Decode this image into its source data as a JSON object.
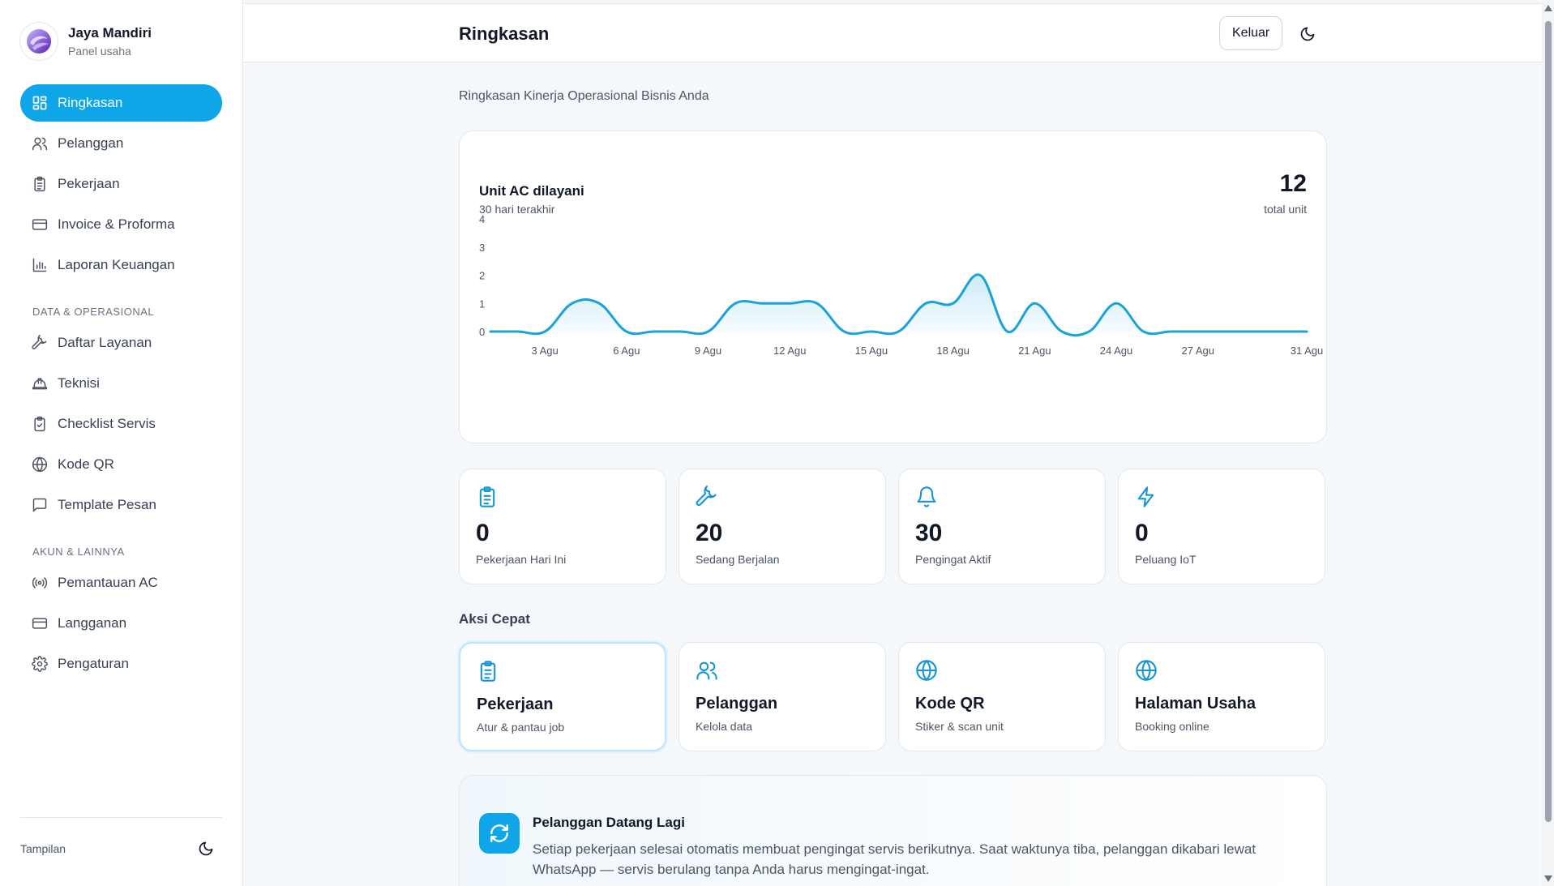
{
  "brand": {
    "name": "Jaya Mandiri",
    "subtitle": "Panel usaha"
  },
  "sidebar": {
    "main_items": [
      {
        "label": "Ringkasan",
        "icon": "grid-icon",
        "active": true
      },
      {
        "label": "Pelanggan",
        "icon": "users-icon"
      },
      {
        "label": "Pekerjaan",
        "icon": "clipboard-icon"
      },
      {
        "label": "Invoice & Proforma",
        "icon": "card-icon"
      },
      {
        "label": "Laporan Keuangan",
        "icon": "bar-chart-icon"
      }
    ],
    "section_data": "DATA & OPERASIONAL",
    "data_items": [
      {
        "label": "Daftar Layanan",
        "icon": "wrench-icon"
      },
      {
        "label": "Teknisi",
        "icon": "hardhat-icon"
      },
      {
        "label": "Checklist Servis",
        "icon": "clipboard-check-icon"
      },
      {
        "label": "Kode QR",
        "icon": "globe-icon"
      },
      {
        "label": "Template Pesan",
        "icon": "message-icon"
      }
    ],
    "section_account": "AKUN & LAINNYA",
    "account_items": [
      {
        "label": "Pemantauan AC",
        "icon": "radio-icon"
      },
      {
        "label": "Langganan",
        "icon": "card-icon"
      },
      {
        "label": "Pengaturan",
        "icon": "gear-icon"
      }
    ],
    "footer_label": "Tampilan"
  },
  "header": {
    "title": "Ringkasan",
    "logout_label": "Keluar"
  },
  "page_subtitle": "Ringkasan Kinerja Operasional Bisnis Anda",
  "chart_card": {
    "title": "Unit AC dilayani",
    "subtitle": "30 hari terakhir",
    "total": "12",
    "total_label": "total unit"
  },
  "chart_data": {
    "type": "area",
    "title": "Unit AC dilayani",
    "subtitle": "30 hari terakhir",
    "x": [
      1,
      2,
      3,
      4,
      5,
      6,
      7,
      8,
      9,
      10,
      11,
      12,
      13,
      14,
      15,
      16,
      17,
      18,
      19,
      20,
      21,
      22,
      23,
      24,
      25,
      26,
      27,
      28,
      29,
      30,
      31
    ],
    "x_tick_labels": [
      "3 Agu",
      "6 Agu",
      "9 Agu",
      "12 Agu",
      "15 Agu",
      "18 Agu",
      "21 Agu",
      "24 Agu",
      "27 Agu",
      "31 Agu"
    ],
    "x_tick_positions": [
      3,
      6,
      9,
      12,
      15,
      18,
      21,
      24,
      27,
      31
    ],
    "values": [
      0,
      0,
      0,
      1,
      1,
      0,
      0,
      0,
      0,
      1,
      1,
      1,
      1,
      0,
      0,
      0,
      1,
      1,
      2,
      0,
      1,
      0,
      0,
      1,
      0,
      0,
      0,
      0,
      0,
      0,
      0
    ],
    "ylim": [
      0,
      4
    ],
    "y_ticks": [
      0,
      1,
      2,
      3,
      4
    ],
    "grid": false,
    "color": "#1aa3da"
  },
  "stats": [
    {
      "value": "0",
      "label": "Pekerjaan Hari Ini",
      "icon": "clipboard-icon"
    },
    {
      "value": "20",
      "label": "Sedang Berjalan",
      "icon": "wrench-icon"
    },
    {
      "value": "30",
      "label": "Pengingat Aktif",
      "icon": "bell-icon"
    },
    {
      "value": "0",
      "label": "Peluang IoT",
      "icon": "lightning-icon"
    }
  ],
  "quick_actions_title": "Aksi Cepat",
  "quick_actions": [
    {
      "title": "Pekerjaan",
      "subtitle": "Atur & pantau job",
      "icon": "clipboard-icon"
    },
    {
      "title": "Pelanggan",
      "subtitle": "Kelola data",
      "icon": "users-icon"
    },
    {
      "title": "Kode QR",
      "subtitle": "Stiker & scan unit",
      "icon": "globe-icon"
    },
    {
      "title": "Halaman Usaha",
      "subtitle": "Booking online",
      "icon": "globe-icon"
    }
  ],
  "info": {
    "title": "Pelanggan Datang Lagi",
    "text": "Setiap pekerjaan selesai otomatis membuat pengingat servis berikutnya. Saat waktunya tiba, pelanggan dikabari lewat WhatsApp — servis berulang tanpa Anda harus mengingat-ingat."
  },
  "colors": {
    "accent": "#0ea5e9",
    "icon_blue": "#1596d3"
  }
}
